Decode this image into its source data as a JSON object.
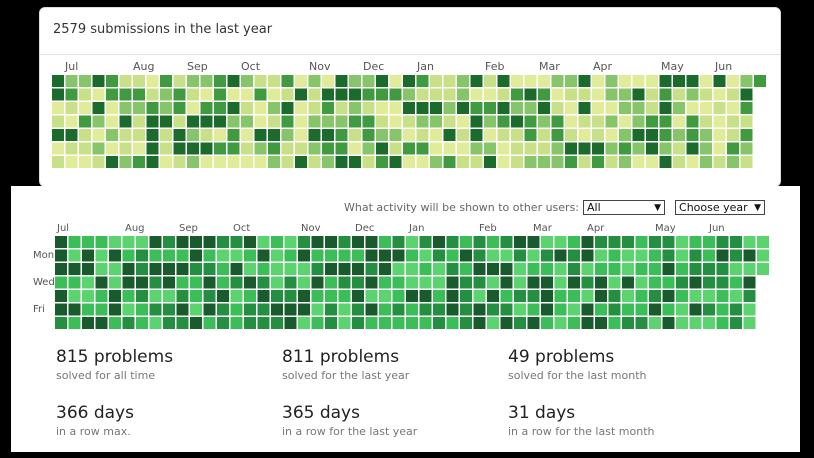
{
  "card1": {
    "title": "2579 submissions in the last year",
    "months": [
      "Jul",
      "Aug",
      "Sep",
      "Oct",
      "Nov",
      "Dec",
      "Jan",
      "Feb",
      "Mar",
      "Apr",
      "May",
      "Jun"
    ],
    "palette": [
      "#e1ec9b",
      "#c8e088",
      "#86c569",
      "#3f9a40",
      "#1b6b2d"
    ],
    "weeks": 53,
    "rows": 7
  },
  "card2": {
    "filter": {
      "label": "What activity will be shown to other users:",
      "activity_value": "All",
      "year_value": "Choose year"
    },
    "months": [
      "Jul",
      "Aug",
      "Sep",
      "Oct",
      "Nov",
      "Dec",
      "Jan",
      "Feb",
      "Mar",
      "Apr",
      "May",
      "Jun"
    ],
    "day_labels": [
      "Mon",
      "Wed",
      "Fri"
    ],
    "palette": [
      "#5bd36f",
      "#3bbd58",
      "#258f41",
      "#1a5b2e"
    ],
    "weeks": 53,
    "rows": 7
  },
  "stats": [
    {
      "value": "815 problems",
      "label": "solved for all time"
    },
    {
      "value": "811 problems",
      "label": "solved for the last year"
    },
    {
      "value": "49 problems",
      "label": "solved for the last month"
    },
    {
      "value": "366 days",
      "label": "in a row max."
    },
    {
      "value": "365 days",
      "label": "in a row for the last year"
    },
    {
      "value": "31 days",
      "label": "in a row for the last month"
    }
  ]
}
